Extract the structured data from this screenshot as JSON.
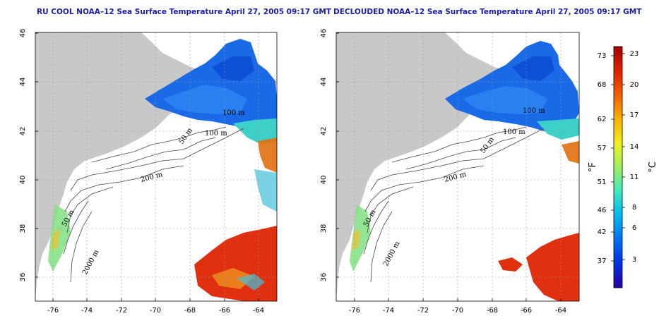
{
  "panels": [
    {
      "title": "RU COOL NOAA–12 Sea Surface Temperature April 27, 2005 09:17 GMT",
      "mode": "cool",
      "contour_labels": [
        "100 m",
        "50 m",
        "200 m",
        "50 m",
        "2000 m",
        "100 m"
      ]
    },
    {
      "title": "DECLOUDED NOAA–12 Sea Surface Temperature April 27, 2005 09:17 GMT",
      "mode": "declouded",
      "contour_labels": [
        "100 m",
        "50 m",
        "200 m",
        "50 m",
        "2000 m",
        "100 m"
      ]
    }
  ],
  "axes": {
    "lat_ticks": [
      "46",
      "44",
      "42",
      "40",
      "38",
      "36"
    ],
    "lon_ticks": [
      "-76",
      "-74",
      "-72",
      "-70",
      "-68",
      "-66",
      "-64"
    ]
  },
  "colorbar": {
    "fahrenheit_ticks": [
      "73",
      "68",
      "62",
      "57",
      "51",
      "46",
      "42",
      "37"
    ],
    "celsius_ticks": [
      "23",
      "20",
      "17",
      "14",
      "11",
      "8",
      "6",
      "3"
    ],
    "fahrenheit_unit": "°F",
    "celsius_unit": "°C",
    "gradient": [
      "#2a00a0",
      "#0030e0",
      "#0070f0",
      "#00b8f0",
      "#40e8c0",
      "#a0f060",
      "#f0f020",
      "#f8b000",
      "#f06000",
      "#e02000",
      "#a00000"
    ]
  },
  "colors": {
    "land": "#c8c8c8",
    "grid": "#999999",
    "title": "#1b1bb0"
  }
}
